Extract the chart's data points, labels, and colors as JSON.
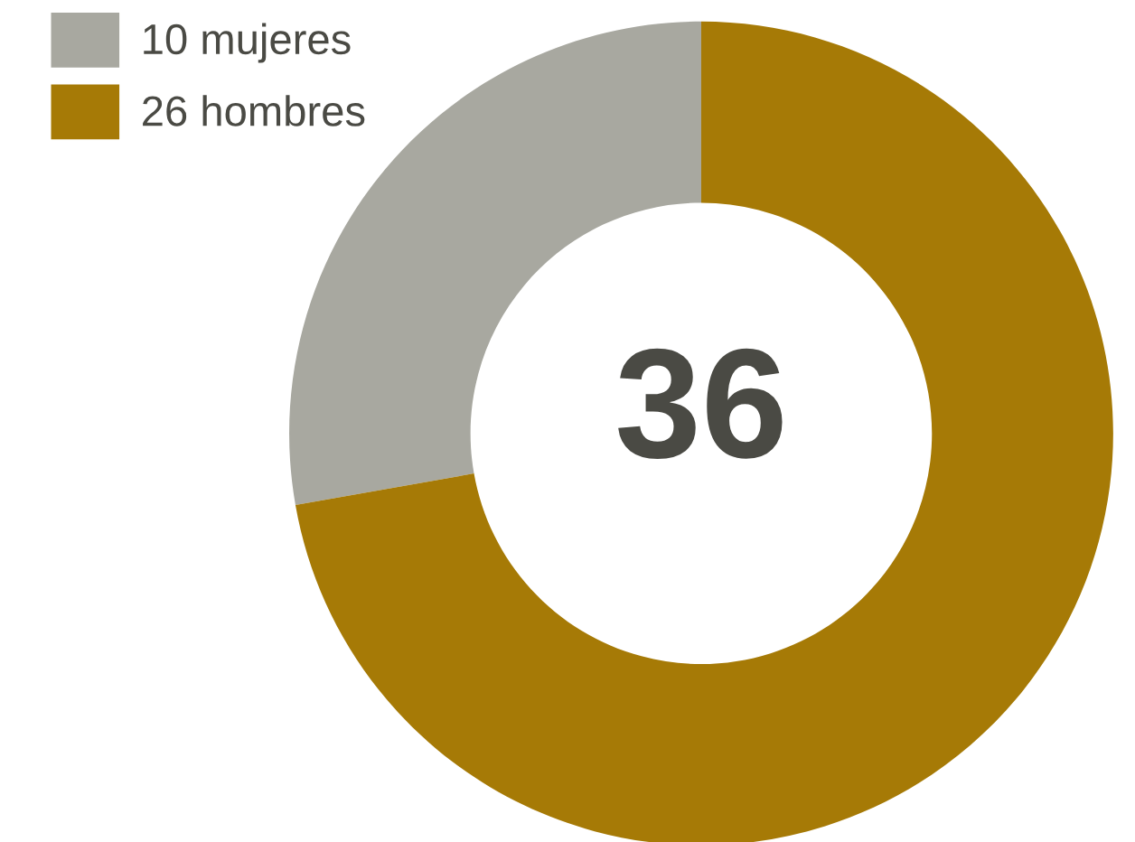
{
  "chart_data": {
    "type": "donut",
    "categories": [
      "10 mujeres",
      "26 hombres"
    ],
    "values": [
      10,
      26
    ],
    "colors": [
      "#a8a8a0",
      "#a67a06"
    ],
    "legend": "top left",
    "annotations": [
      "36"
    ]
  }
}
